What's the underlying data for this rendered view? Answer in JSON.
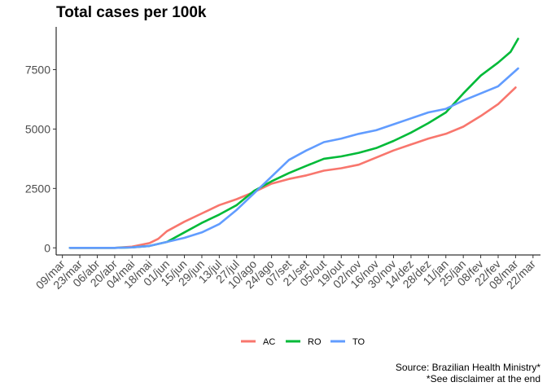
{
  "chart_data": {
    "type": "line",
    "title": "Total cases per 100k",
    "xlabel": "",
    "ylabel": "",
    "x_ticks": [
      "09/mar",
      "23/mar",
      "06/abr",
      "20/abr",
      "04/mai",
      "18/mai",
      "01/jun",
      "15/jun",
      "29/jun",
      "13/jul",
      "27/jul",
      "10/ago",
      "24/ago",
      "07/set",
      "21/set",
      "05/out",
      "19/out",
      "02/nov",
      "16/nov",
      "30/nov",
      "14/dez",
      "28/dez",
      "11/jan",
      "25/jan",
      "08/fev",
      "22/fev",
      "08/mar",
      "22/mar"
    ],
    "y_ticks": [
      0,
      2500,
      5000,
      7500
    ],
    "ylim": [
      -300,
      9300
    ],
    "xlim_days": [
      -5,
      384
    ],
    "x_start_date": "2020-03-09",
    "grid": false,
    "legend_position": "bottom",
    "series": [
      {
        "name": "AC",
        "color": "#F8766D",
        "points": [
          {
            "x": "2020-03-15",
            "y": 0
          },
          {
            "x": "2020-04-20",
            "y": 0
          },
          {
            "x": "2020-05-04",
            "y": 50
          },
          {
            "x": "2020-05-18",
            "y": 200
          },
          {
            "x": "2020-05-25",
            "y": 380
          },
          {
            "x": "2020-06-01",
            "y": 700
          },
          {
            "x": "2020-06-15",
            "y": 1100
          },
          {
            "x": "2020-06-29",
            "y": 1450
          },
          {
            "x": "2020-07-13",
            "y": 1800
          },
          {
            "x": "2020-07-27",
            "y": 2050
          },
          {
            "x": "2020-08-10",
            "y": 2350
          },
          {
            "x": "2020-08-24",
            "y": 2700
          },
          {
            "x": "2020-09-07",
            "y": 2900
          },
          {
            "x": "2020-09-21",
            "y": 3050
          },
          {
            "x": "2020-10-05",
            "y": 3250
          },
          {
            "x": "2020-10-19",
            "y": 3350
          },
          {
            "x": "2020-11-02",
            "y": 3500
          },
          {
            "x": "2020-11-16",
            "y": 3800
          },
          {
            "x": "2020-11-30",
            "y": 4100
          },
          {
            "x": "2020-12-14",
            "y": 4350
          },
          {
            "x": "2020-12-28",
            "y": 4600
          },
          {
            "x": "2021-01-11",
            "y": 4800
          },
          {
            "x": "2021-01-25",
            "y": 5100
          },
          {
            "x": "2021-02-08",
            "y": 5550
          },
          {
            "x": "2021-02-22",
            "y": 6050
          },
          {
            "x": "2021-03-08",
            "y": 6750
          }
        ]
      },
      {
        "name": "RO",
        "color": "#00BA38",
        "points": [
          {
            "x": "2020-03-15",
            "y": 0
          },
          {
            "x": "2020-04-20",
            "y": 0
          },
          {
            "x": "2020-05-04",
            "y": 20
          },
          {
            "x": "2020-05-18",
            "y": 80
          },
          {
            "x": "2020-06-01",
            "y": 250
          },
          {
            "x": "2020-06-15",
            "y": 650
          },
          {
            "x": "2020-06-29",
            "y": 1050
          },
          {
            "x": "2020-07-13",
            "y": 1400
          },
          {
            "x": "2020-07-27",
            "y": 1800
          },
          {
            "x": "2020-08-10",
            "y": 2400
          },
          {
            "x": "2020-08-24",
            "y": 2800
          },
          {
            "x": "2020-09-07",
            "y": 3150
          },
          {
            "x": "2020-09-21",
            "y": 3450
          },
          {
            "x": "2020-10-05",
            "y": 3750
          },
          {
            "x": "2020-10-19",
            "y": 3850
          },
          {
            "x": "2020-11-02",
            "y": 4000
          },
          {
            "x": "2020-11-16",
            "y": 4200
          },
          {
            "x": "2020-11-30",
            "y": 4500
          },
          {
            "x": "2020-12-14",
            "y": 4850
          },
          {
            "x": "2020-12-28",
            "y": 5250
          },
          {
            "x": "2021-01-11",
            "y": 5700
          },
          {
            "x": "2021-01-25",
            "y": 6500
          },
          {
            "x": "2021-02-08",
            "y": 7250
          },
          {
            "x": "2021-02-22",
            "y": 7800
          },
          {
            "x": "2021-03-04",
            "y": 8250
          },
          {
            "x": "2021-03-10",
            "y": 8800
          }
        ]
      },
      {
        "name": "TO",
        "color": "#619CFF",
        "points": [
          {
            "x": "2020-03-15",
            "y": 0
          },
          {
            "x": "2020-04-20",
            "y": 0
          },
          {
            "x": "2020-05-04",
            "y": 20
          },
          {
            "x": "2020-05-18",
            "y": 80
          },
          {
            "x": "2020-06-01",
            "y": 250
          },
          {
            "x": "2020-06-15",
            "y": 420
          },
          {
            "x": "2020-06-29",
            "y": 650
          },
          {
            "x": "2020-07-13",
            "y": 1000
          },
          {
            "x": "2020-07-27",
            "y": 1600
          },
          {
            "x": "2020-08-10",
            "y": 2300
          },
          {
            "x": "2020-08-24",
            "y": 3000
          },
          {
            "x": "2020-09-07",
            "y": 3700
          },
          {
            "x": "2020-09-21",
            "y": 4100
          },
          {
            "x": "2020-10-05",
            "y": 4450
          },
          {
            "x": "2020-10-19",
            "y": 4600
          },
          {
            "x": "2020-11-02",
            "y": 4800
          },
          {
            "x": "2020-11-16",
            "y": 4950
          },
          {
            "x": "2020-11-30",
            "y": 5200
          },
          {
            "x": "2020-12-14",
            "y": 5450
          },
          {
            "x": "2020-12-28",
            "y": 5700
          },
          {
            "x": "2021-01-11",
            "y": 5850
          },
          {
            "x": "2021-01-25",
            "y": 6200
          },
          {
            "x": "2021-02-08",
            "y": 6500
          },
          {
            "x": "2021-02-22",
            "y": 6800
          },
          {
            "x": "2021-03-10",
            "y": 7550
          }
        ]
      }
    ]
  },
  "caption": {
    "line1": "Source: Brazilian Health Ministry*",
    "line2": "*See disclaimer at the end"
  }
}
